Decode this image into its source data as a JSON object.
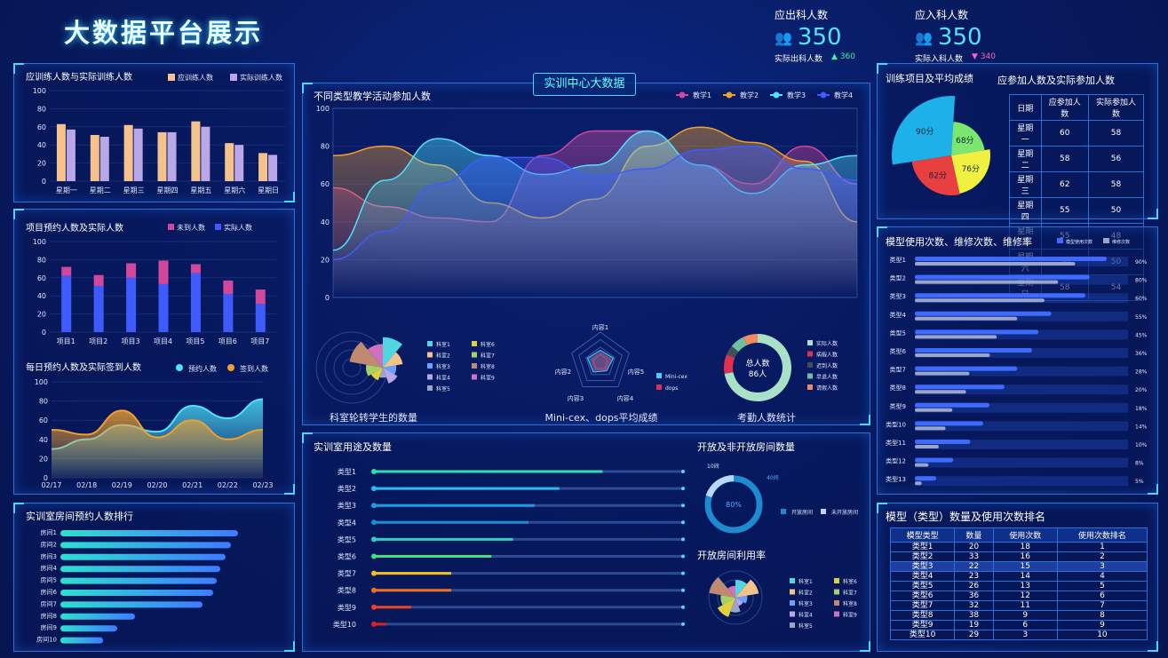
{
  "header": {
    "title": "大数据平台展示",
    "kpi1": {
      "label": "应出科人数",
      "value": "350",
      "sub_label": "实际出科人数",
      "sub_value": "360",
      "sub_dir": "▲"
    },
    "kpi2": {
      "label": "应入科人数",
      "value": "350",
      "sub_label": "实际入科人数",
      "sub_value": "340",
      "sub_dir": "▼"
    }
  },
  "center_title": "实训中心大数据",
  "colors": {
    "orange": "#f6c28b",
    "lavender": "#b9a7e8",
    "pink": "#d0479b",
    "blue": "#3e5bff",
    "cyan": "#4fe3ff",
    "gold": "#f0a030"
  },
  "chart_data": [
    {
      "id": "train",
      "type": "bar",
      "title": "应训练人数与实际训练人数",
      "categories": [
        "星期一",
        "星期二",
        "星期三",
        "星期四",
        "星期五",
        "星期六",
        "星期日"
      ],
      "series": [
        {
          "name": "应训练人数",
          "values": [
            63,
            51,
            62,
            54,
            66,
            42,
            31
          ]
        },
        {
          "name": "实际训练人数",
          "values": [
            57,
            49,
            58,
            54,
            60,
            40,
            29
          ]
        }
      ],
      "ylim": [
        0,
        100
      ],
      "yticks": [
        0,
        20,
        40,
        60,
        80,
        100
      ]
    },
    {
      "id": "appoint",
      "type": "bar",
      "title": "项目预约人数及实际人数",
      "categories": [
        "项目1",
        "项目2",
        "项目3",
        "项目4",
        "项目5",
        "项目6",
        "项目7"
      ],
      "series": [
        {
          "name": "未到人数",
          "values": [
            10,
            12,
            16,
            26,
            10,
            15,
            16
          ]
        },
        {
          "name": "实际人数",
          "values": [
            62,
            51,
            60,
            53,
            65,
            42,
            31
          ]
        }
      ],
      "ylim": [
        0,
        100
      ],
      "yticks": [
        0,
        20,
        40,
        60,
        80,
        100
      ]
    },
    {
      "id": "daily",
      "type": "area",
      "title": "每日预约人数及实际签到人数",
      "x": [
        "02/17",
        "02/18",
        "02/19",
        "02/20",
        "02/21",
        "02/22",
        "02/23"
      ],
      "series": [
        {
          "name": "预约人数",
          "values": [
            30,
            40,
            55,
            48,
            75,
            62,
            82
          ]
        },
        {
          "name": "签到人数",
          "values": [
            50,
            45,
            70,
            42,
            60,
            40,
            50
          ]
        }
      ],
      "ylim": [
        0,
        100
      ],
      "yticks": [
        0,
        20,
        40,
        60,
        80,
        100
      ]
    },
    {
      "id": "rooms",
      "type": "bar",
      "title": "实训室房间预约人数排行",
      "categories": [
        "房间1",
        "房间2",
        "房间3",
        "房间4",
        "房间5",
        "房间6",
        "房间7",
        "房间8",
        "房间9",
        "房间10"
      ],
      "values": [
        100,
        96,
        93,
        90,
        88,
        86,
        80,
        42,
        32,
        24
      ]
    },
    {
      "id": "activity",
      "type": "line",
      "title": "不同类型教学活动参加人数",
      "series": [
        {
          "name": "教学1",
          "values": [
            58,
            48,
            42,
            40,
            75,
            88,
            88,
            70,
            60,
            80,
            60
          ]
        },
        {
          "name": "教学2",
          "values": [
            75,
            80,
            70,
            50,
            42,
            52,
            80,
            90,
            82,
            72,
            40
          ]
        },
        {
          "name": "教学3",
          "values": [
            25,
            62,
            84,
            75,
            65,
            70,
            88,
            70,
            55,
            70,
            75
          ]
        },
        {
          "name": "教学4",
          "values": [
            20,
            35,
            60,
            74,
            74,
            64,
            68,
            78,
            80,
            68,
            62
          ]
        }
      ],
      "ylim": [
        0,
        100
      ],
      "yticks": [
        0,
        20,
        40,
        60,
        80,
        100
      ]
    },
    {
      "id": "rose1",
      "type": "pie",
      "title": "科室轮转学生的数量",
      "categories": [
        "科室1",
        "科室2",
        "科室3",
        "科室4",
        "科室5",
        "科室6",
        "科室7",
        "科室8",
        "科室9"
      ],
      "values": [
        9,
        6,
        4,
        5,
        3,
        4,
        5,
        10,
        7
      ]
    },
    {
      "id": "radar",
      "type": "radar",
      "title": "Mini-cex、dops平均成绩",
      "categories": [
        "内容1",
        "内容5",
        "内容4",
        "内容3",
        "内容2"
      ],
      "series": [
        {
          "name": "Mini-cex",
          "values": [
            40,
            45,
            35,
            40,
            45
          ]
        },
        {
          "name": "dops",
          "values": [
            30,
            35,
            30,
            30,
            30
          ]
        }
      ]
    },
    {
      "id": "attend",
      "type": "pie",
      "title": "考勤人数统计",
      "center_label": "总人数",
      "center_value": "86人",
      "categories": [
        "实际人数",
        "病假人数",
        "迟到人数",
        "早退人数",
        "请假人数"
      ],
      "values": [
        62,
        8,
        4,
        6,
        6
      ]
    },
    {
      "id": "usage",
      "type": "bar",
      "title": "实训室用途及数量",
      "categories": [
        "类型1",
        "类型2",
        "类型3",
        "类型4",
        "类型5",
        "类型6",
        "类型7",
        "类型8",
        "类型9",
        "类型10"
      ],
      "values": [
        74,
        60,
        52,
        50,
        45,
        38,
        25,
        25,
        12,
        4
      ]
    },
    {
      "id": "openroom",
      "type": "pie",
      "title": "开放及非开放房间数量",
      "center_label": "80%",
      "categories": [
        "开放房间",
        "未开放房间"
      ],
      "values": [
        40,
        10
      ],
      "annotations": [
        "10间",
        "40间"
      ]
    },
    {
      "id": "rose2",
      "type": "pie",
      "title": "开放房间利用率",
      "categories": [
        "科室1",
        "科室2",
        "科室3",
        "科室4",
        "科室5",
        "科室6",
        "科室7",
        "科室8",
        "科室9"
      ],
      "values": [
        6,
        8,
        4,
        3,
        5,
        7,
        5,
        9,
        4
      ]
    },
    {
      "id": "score",
      "type": "pie",
      "title": "训练项目及平均成绩",
      "categories": [
        "90分",
        "68分",
        "76分",
        "82分"
      ],
      "values": [
        90,
        68,
        76,
        82
      ]
    },
    {
      "id": "model",
      "type": "bar",
      "title": "模型使用次数、维修次数、维修率",
      "categories": [
        "类型1",
        "类型2",
        "类型3",
        "类型4",
        "类型5",
        "类型6",
        "类型7",
        "类型8",
        "类型9",
        "类型10",
        "类型11",
        "类型12",
        "类型13"
      ],
      "series": [
        {
          "name": "模型使用次数",
          "values": [
            90,
            82,
            80,
            64,
            58,
            55,
            48,
            42,
            35,
            32,
            26,
            18,
            10
          ]
        },
        {
          "name": "维修次数",
          "values": [
            47,
            42,
            38,
            30,
            24,
            22,
            16,
            15,
            11,
            9,
            7,
            4,
            2
          ]
        }
      ],
      "rates": [
        "90%",
        "80%",
        "60%",
        "55%",
        "45%",
        "36%",
        "28%",
        "20%",
        "18%",
        "14%",
        "10%",
        "8%",
        "5%"
      ]
    }
  ],
  "attend_table": {
    "title": "应参加人数及实际参加人数",
    "headers": [
      "日期",
      "应参加人数",
      "实际参加人数"
    ],
    "rows": [
      [
        "星期一",
        "60",
        "58"
      ],
      [
        "星期二",
        "58",
        "56"
      ],
      [
        "星期三",
        "62",
        "58"
      ],
      [
        "星期四",
        "55",
        "50"
      ],
      [
        "星期五",
        "55",
        "48"
      ],
      [
        "星期六",
        "50",
        "50"
      ],
      [
        "星期日",
        "58",
        "54"
      ]
    ]
  },
  "model_table": {
    "title": "模型（类型）数量及使用次数排名",
    "headers": [
      "模型类型",
      "数量",
      "使用次数",
      "使用次数排名"
    ],
    "rows": [
      [
        "类型1",
        "20",
        "18",
        "1"
      ],
      [
        "类型2",
        "33",
        "16",
        "2"
      ],
      [
        "类型3",
        "22",
        "15",
        "3"
      ],
      [
        "类型4",
        "23",
        "14",
        "4"
      ],
      [
        "类型5",
        "26",
        "13",
        "5"
      ],
      [
        "类型6",
        "36",
        "12",
        "6"
      ],
      [
        "类型7",
        "32",
        "11",
        "7"
      ],
      [
        "类型8",
        "38",
        "9",
        "8"
      ],
      [
        "类型9",
        "19",
        "6",
        "9"
      ],
      [
        "类型10",
        "29",
        "3",
        "10"
      ]
    ]
  }
}
